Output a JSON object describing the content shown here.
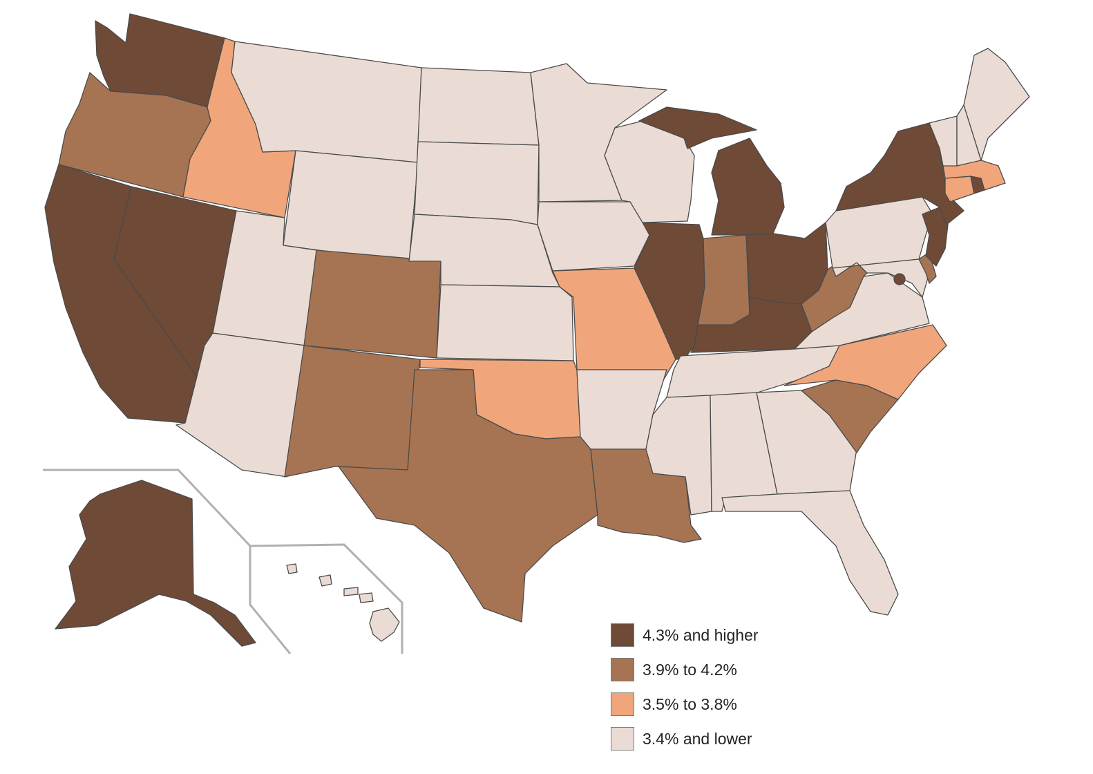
{
  "legend": {
    "items": [
      {
        "label": "4.3% and higher",
        "color": "#6e4a37"
      },
      {
        "label": "3.9% to 4.2%",
        "color": "#a67453"
      },
      {
        "label": "3.5% to 3.8%",
        "color": "#f0a67a"
      },
      {
        "label": "3.4% and lower",
        "color": "#eadcd4"
      }
    ]
  },
  "states": [
    {
      "abbr": "WA",
      "class": 0
    },
    {
      "abbr": "OR",
      "class": 1
    },
    {
      "abbr": "CA",
      "class": 0
    },
    {
      "abbr": "NV",
      "class": 0
    },
    {
      "abbr": "ID",
      "class": 2
    },
    {
      "abbr": "MT",
      "class": 3
    },
    {
      "abbr": "WY",
      "class": 3
    },
    {
      "abbr": "UT",
      "class": 3
    },
    {
      "abbr": "AZ",
      "class": 3
    },
    {
      "abbr": "CO",
      "class": 1
    },
    {
      "abbr": "NM",
      "class": 1
    },
    {
      "abbr": "ND",
      "class": 3
    },
    {
      "abbr": "SD",
      "class": 3
    },
    {
      "abbr": "NE",
      "class": 3
    },
    {
      "abbr": "KS",
      "class": 3
    },
    {
      "abbr": "OK",
      "class": 2
    },
    {
      "abbr": "TX",
      "class": 1
    },
    {
      "abbr": "MN",
      "class": 3
    },
    {
      "abbr": "IA",
      "class": 3
    },
    {
      "abbr": "MO",
      "class": 2
    },
    {
      "abbr": "AR",
      "class": 3
    },
    {
      "abbr": "LA",
      "class": 1
    },
    {
      "abbr": "WI",
      "class": 3
    },
    {
      "abbr": "IL",
      "class": 0
    },
    {
      "abbr": "MI",
      "class": 0
    },
    {
      "abbr": "IN",
      "class": 1
    },
    {
      "abbr": "OH",
      "class": 0
    },
    {
      "abbr": "KY",
      "class": 0
    },
    {
      "abbr": "TN",
      "class": 3
    },
    {
      "abbr": "MS",
      "class": 3
    },
    {
      "abbr": "AL",
      "class": 3
    },
    {
      "abbr": "GA",
      "class": 3
    },
    {
      "abbr": "FL",
      "class": 3
    },
    {
      "abbr": "SC",
      "class": 1
    },
    {
      "abbr": "NC",
      "class": 2
    },
    {
      "abbr": "VA",
      "class": 3
    },
    {
      "abbr": "WV",
      "class": 1
    },
    {
      "abbr": "MD",
      "class": 3
    },
    {
      "abbr": "DE",
      "class": 1
    },
    {
      "abbr": "DC",
      "class": 0
    },
    {
      "abbr": "PA",
      "class": 3
    },
    {
      "abbr": "NJ",
      "class": 0
    },
    {
      "abbr": "NY",
      "class": 0
    },
    {
      "abbr": "CT",
      "class": 2
    },
    {
      "abbr": "RI",
      "class": 0
    },
    {
      "abbr": "MA",
      "class": 2
    },
    {
      "abbr": "VT",
      "class": 3
    },
    {
      "abbr": "NH",
      "class": 3
    },
    {
      "abbr": "ME",
      "class": 3
    },
    {
      "abbr": "AK",
      "class": 0
    },
    {
      "abbr": "HI",
      "class": 3
    }
  ]
}
